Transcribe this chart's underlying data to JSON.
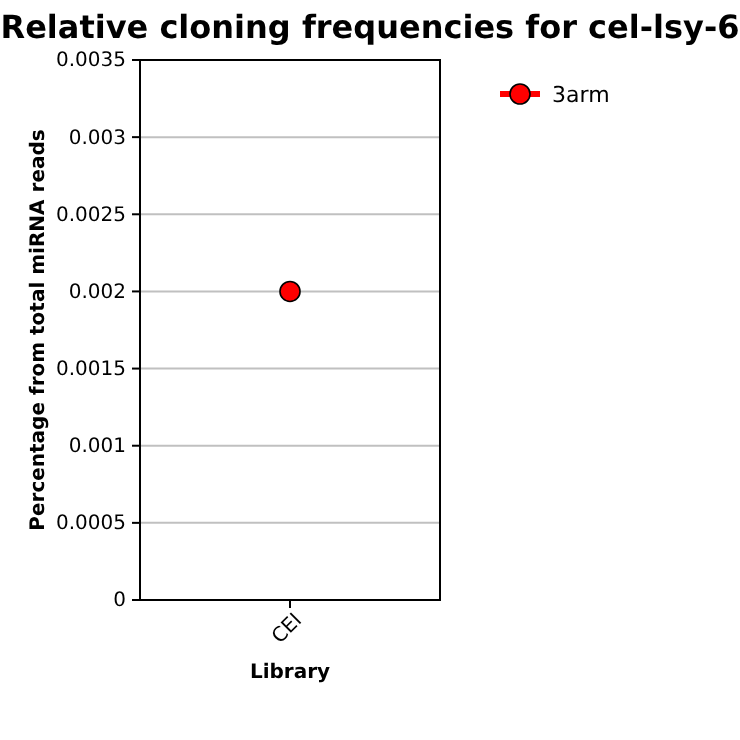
{
  "chart_data": {
    "type": "line",
    "title": "Relative cloning frequencies for cel-lsy-6",
    "xlabel": "Library",
    "ylabel": "Percentage from total miRNA reads",
    "categories": [
      "CEI"
    ],
    "series": [
      {
        "name": "3arm",
        "color": "#ff0000",
        "values": [
          0.002
        ]
      }
    ],
    "ylim": [
      0,
      0.0035
    ],
    "yticks": [
      0,
      0.0005,
      0.001,
      0.0015,
      0.002,
      0.0025,
      0.003,
      0.0035
    ],
    "grid": "y",
    "legend": "top right",
    "marker": "circle",
    "line_style": "solid"
  }
}
